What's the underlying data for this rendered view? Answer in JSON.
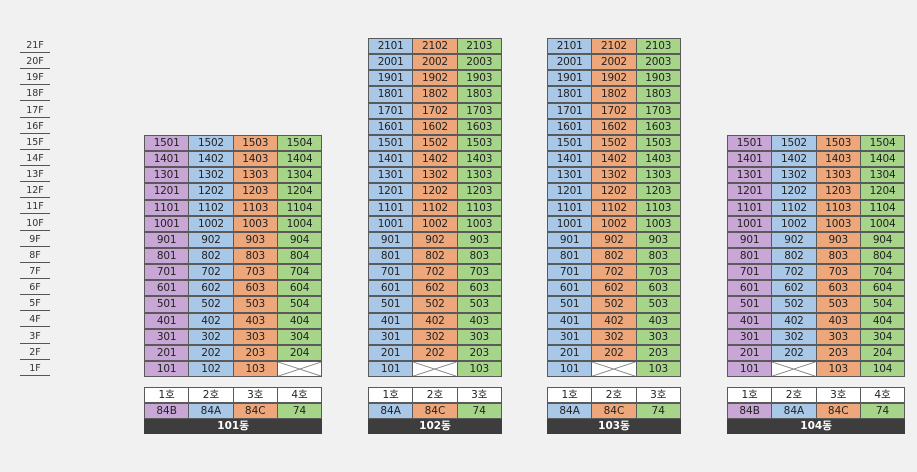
{
  "floors": [
    "21F",
    "20F",
    "19F",
    "18F",
    "17F",
    "16F",
    "15F",
    "14F",
    "13F",
    "12F",
    "11F",
    "10F",
    "9F",
    "8F",
    "7F",
    "6F",
    "5F",
    "4F",
    "3F",
    "2F",
    "1F"
  ],
  "colors": {
    "purple": "#c8a6d6",
    "blue": "#a9c8e8",
    "orange": "#eda77a",
    "green": "#a6d58a"
  },
  "buildings": [
    {
      "name": "101동",
      "max_floor": 15,
      "units": [
        {
          "ho": "1호",
          "type": "84B",
          "color": "purple",
          "skip_floors": []
        },
        {
          "ho": "2호",
          "type": "84A",
          "color": "blue",
          "skip_floors": []
        },
        {
          "ho": "3호",
          "type": "84C",
          "color": "orange",
          "skip_floors": []
        },
        {
          "ho": "4호",
          "type": "74",
          "color": "green",
          "skip_floors": [
            1
          ]
        }
      ]
    },
    {
      "name": "102동",
      "max_floor": 21,
      "units": [
        {
          "ho": "1호",
          "type": "84A",
          "color": "blue",
          "skip_floors": []
        },
        {
          "ho": "2호",
          "type": "84C",
          "color": "orange",
          "skip_floors": [
            1
          ]
        },
        {
          "ho": "3호",
          "type": "74",
          "color": "green",
          "skip_floors": []
        }
      ]
    },
    {
      "name": "103동",
      "max_floor": 21,
      "units": [
        {
          "ho": "1호",
          "type": "84A",
          "color": "blue",
          "skip_floors": []
        },
        {
          "ho": "2호",
          "type": "84C",
          "color": "orange",
          "skip_floors": [
            1
          ]
        },
        {
          "ho": "3호",
          "type": "74",
          "color": "green",
          "skip_floors": []
        }
      ]
    },
    {
      "name": "104동",
      "max_floor": 15,
      "units": [
        {
          "ho": "1호",
          "type": "84B",
          "color": "purple",
          "skip_floors": []
        },
        {
          "ho": "2호",
          "type": "84A",
          "color": "blue",
          "skip_floors": [
            1
          ]
        },
        {
          "ho": "3호",
          "type": "84C",
          "color": "orange",
          "skip_floors": []
        },
        {
          "ho": "4호",
          "type": "74",
          "color": "green",
          "skip_floors": []
        }
      ]
    }
  ]
}
